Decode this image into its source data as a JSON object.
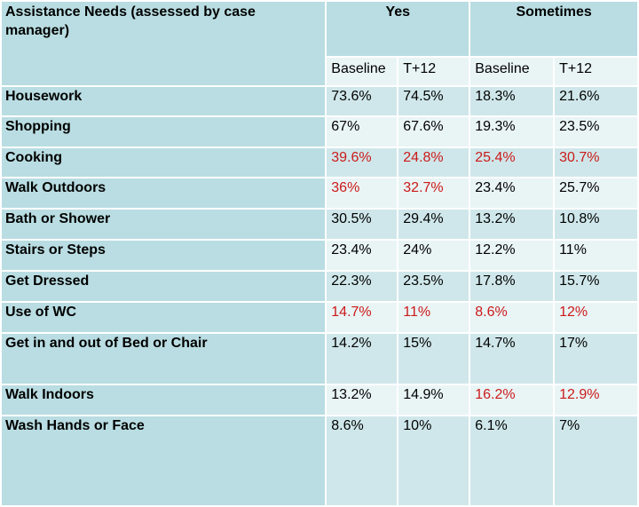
{
  "header": {
    "title": "Assistance Needs (assessed by case manager)",
    "group_yes": "Yes",
    "group_sometimes": "Sometimes",
    "sub": [
      "Baseline",
      "T+12",
      "Baseline",
      "T+12"
    ]
  },
  "rows": [
    {
      "label": "Housework",
      "values": [
        "73.6%",
        "74.5%",
        "18.3%",
        "21.6%"
      ]
    },
    {
      "label": "Shopping",
      "values": [
        "67%",
        "67.6%",
        "19.3%",
        "23.5%"
      ]
    },
    {
      "label": "Cooking",
      "values": [
        "39.6%",
        "24.8%",
        "25.4%",
        "30.7%"
      ]
    },
    {
      "label": "Walk Outdoors",
      "values": [
        "36%",
        "32.7%",
        "23.4%",
        "25.7%"
      ]
    },
    {
      "label": "Bath or Shower",
      "values": [
        "30.5%",
        "29.4%",
        "13.2%",
        "10.8%"
      ]
    },
    {
      "label": "Stairs or Steps",
      "values": [
        "23.4%",
        "24%",
        "12.2%",
        "11%"
      ]
    },
    {
      "label": "Get Dressed",
      "values": [
        "22.3%",
        "23.5%",
        "17.8%",
        "15.7%"
      ]
    },
    {
      "label": "Use of WC",
      "values": [
        "14.7%",
        "11%",
        "8.6%",
        "12%"
      ]
    },
    {
      "label": "Get in and out of Bed or Chair",
      "values": [
        "14.2%",
        "15%",
        "14.7%",
        "17%"
      ]
    },
    {
      "label": "Walk Indoors",
      "values": [
        "13.2%",
        "14.9%",
        "16.2%",
        "12.9%"
      ]
    },
    {
      "label": "Wash Hands or Face",
      "values": [
        "8.6%",
        "10%",
        "6.1%",
        "7%"
      ]
    }
  ],
  "highlight_color": "#cc1a1a",
  "highlight_cells": {
    "Cooking": [
      0,
      1,
      2,
      3
    ],
    "Walk Outdoors": [
      0,
      1
    ],
    "Use of WC": [
      0,
      1,
      2,
      3
    ],
    "Walk Indoors": [
      2,
      3
    ]
  }
}
